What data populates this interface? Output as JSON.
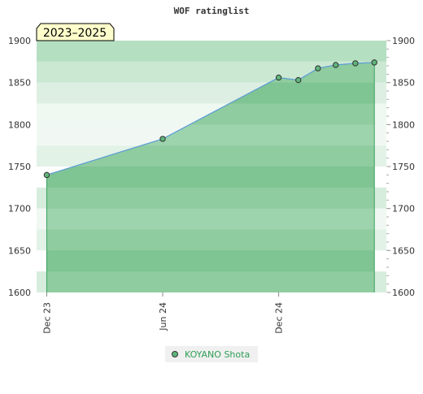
{
  "chart_data": {
    "type": "area",
    "title": "WOF ratinglist",
    "period_label": "2023–2025",
    "xlabel": "",
    "ylabel": "",
    "ylim": [
      1600,
      1900
    ],
    "y_ticks": [
      1600,
      1650,
      1700,
      1750,
      1800,
      1850,
      1900
    ],
    "x_ticks": [
      {
        "date": "2023-12-01",
        "label": "Dec 23"
      },
      {
        "date": "2024-06-01",
        "label": "Jun 24"
      },
      {
        "date": "2024-12-01",
        "label": "Dec 24"
      }
    ],
    "xlim": [
      "2023-11-15",
      "2025-05-20"
    ],
    "grid": true,
    "legend_position": "bottom-center",
    "series": [
      {
        "name": "KOYANO Shota",
        "points": [
          {
            "x": "2023-12-01",
            "y": 1740
          },
          {
            "x": "2024-06-01",
            "y": 1783
          },
          {
            "x": "2024-12-01",
            "y": 1856
          },
          {
            "x": "2025-01-01",
            "y": 1853
          },
          {
            "x": "2025-02-01",
            "y": 1867
          },
          {
            "x": "2025-03-01",
            "y": 1871
          },
          {
            "x": "2025-04-01",
            "y": 1873
          },
          {
            "x": "2025-05-01",
            "y": 1874
          }
        ]
      }
    ],
    "colors": {
      "fill": "#79c18f",
      "line": "#5b9bd5",
      "marker": "#5fb47a",
      "legend_text": "#2e9e55",
      "period_badge_bg": "#ffffcc"
    }
  }
}
